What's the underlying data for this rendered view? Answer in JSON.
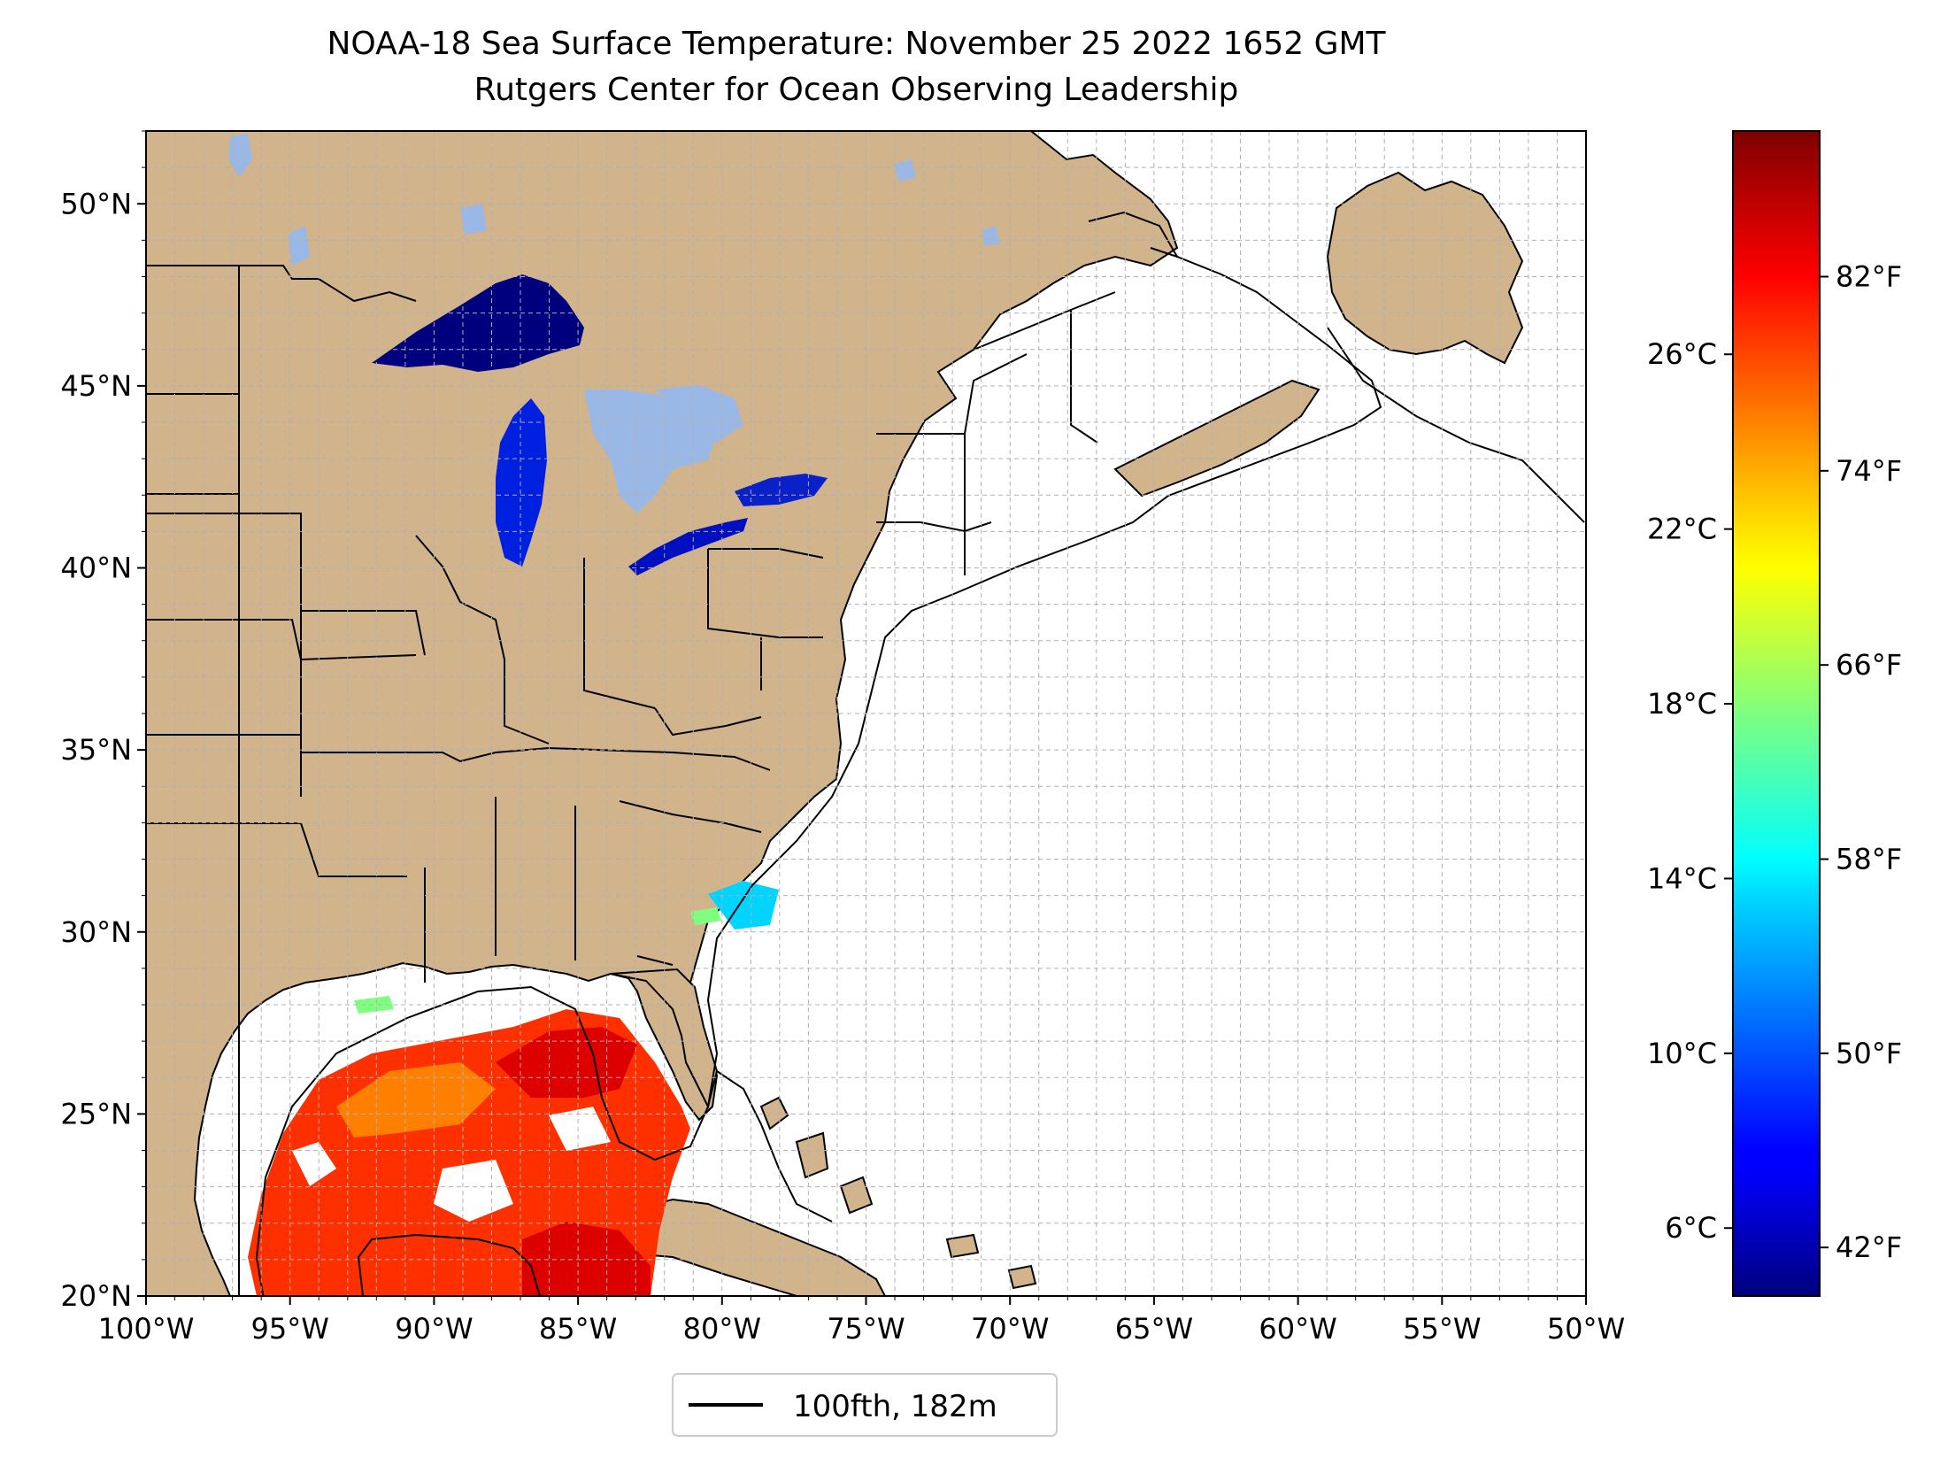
{
  "title": "NOAA-18 Sea Surface Temperature: November 25 2022 1652 GMT",
  "subtitle": "Rutgers Center for Ocean Observing Leadership",
  "map": {
    "lon_range": [
      -100,
      -50
    ],
    "lat_range": [
      20,
      52
    ],
    "lon_ticks": [
      -100,
      -95,
      -90,
      -85,
      -80,
      -75,
      -70,
      -65,
      -60,
      -55,
      -50
    ],
    "lon_tick_labels": [
      "100°W",
      "95°W",
      "90°W",
      "85°W",
      "80°W",
      "75°W",
      "70°W",
      "65°W",
      "60°W",
      "55°W",
      "50°W"
    ],
    "lat_ticks": [
      20,
      25,
      30,
      35,
      40,
      45,
      50
    ],
    "lat_tick_labels": [
      "20°N",
      "25°N",
      "30°N",
      "35°N",
      "40°N",
      "45°N",
      "50°N"
    ],
    "grid": true,
    "land_color": "#d2b48c",
    "ocean_color": "#ffffff"
  },
  "legend": {
    "entry_label": "100fth, 182m",
    "placement": "bottom-center"
  },
  "colorbar": {
    "colormap": "jet",
    "fahrenheit_range": [
      40,
      88
    ],
    "fahrenheit_ticks": [
      42,
      50,
      58,
      66,
      74,
      82
    ],
    "fahrenheit_labels": [
      "42°F",
      "50°F",
      "58°F",
      "66°F",
      "74°F",
      "82°F"
    ],
    "celsius_ticks": [
      6,
      10,
      14,
      18,
      22,
      26
    ],
    "celsius_labels": [
      "6°C",
      "10°C",
      "14°C",
      "18°C",
      "22°C",
      "26°C"
    ]
  },
  "colors": {
    "great_lakes_cold": "#00007f",
    "great_lakes_mid": "#0020ff",
    "lake_light": "#9ab8e6",
    "gulf_warm": "#ff3000",
    "gulf_hot": "#dd0000",
    "gulf_mid": "#ff8000"
  }
}
